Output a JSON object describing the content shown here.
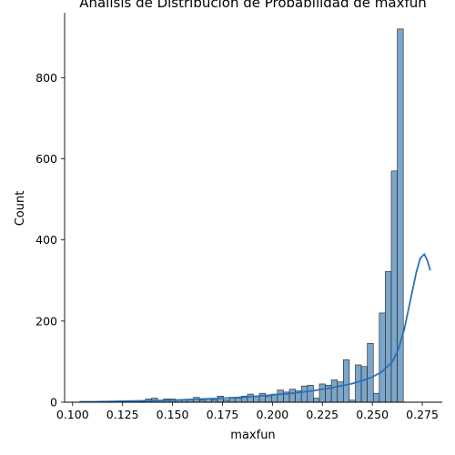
{
  "chart_data": {
    "type": "histogram",
    "title": "Análisis de Distribución de Probabilidad de maxfun",
    "xlabel": "maxfun",
    "ylabel": "Count",
    "xlim": [
      0.096,
      0.285
    ],
    "ylim": [
      0,
      960
    ],
    "x_ticks": [
      0.1,
      0.125,
      0.15,
      0.175,
      0.2,
      0.225,
      0.25,
      0.275
    ],
    "x_tick_labels": [
      "0.100",
      "0.125",
      "0.150",
      "0.175",
      "0.200",
      "0.225",
      "0.250",
      "0.275"
    ],
    "y_ticks": [
      0,
      200,
      400,
      600,
      800
    ],
    "y_tick_labels": [
      "0",
      "200",
      "400",
      "600",
      "800"
    ],
    "grid": false,
    "bar_color": "#7ba5c9",
    "bar_edge_color": "#1f1f1f",
    "kde_color": "#2a72b5",
    "bin_start": 0.1035,
    "bin_width": 0.003,
    "counts": [
      1,
      1,
      1,
      1,
      1,
      1,
      1,
      1,
      1,
      1,
      2,
      8,
      10,
      4,
      8,
      8,
      6,
      5,
      6,
      12,
      5,
      8,
      6,
      15,
      6,
      12,
      10,
      15,
      20,
      15,
      22,
      14,
      20,
      30,
      25,
      32,
      28,
      40,
      42,
      10,
      45,
      42,
      55,
      50,
      105,
      5,
      92,
      88,
      145,
      22,
      220,
      322,
      570,
      920
    ],
    "kde": {
      "x": [
        0.1035,
        0.11,
        0.12,
        0.13,
        0.14,
        0.15,
        0.16,
        0.17,
        0.18,
        0.19,
        0.2,
        0.21,
        0.22,
        0.23,
        0.24,
        0.245,
        0.25,
        0.255,
        0.26,
        0.263,
        0.266,
        0.269,
        0.272,
        0.274,
        0.276,
        0.2775,
        0.279
      ],
      "y": [
        1,
        1,
        2,
        3,
        4,
        5,
        7,
        9,
        11,
        14,
        18,
        22,
        28,
        36,
        46,
        53,
        62,
        76,
        100,
        130,
        180,
        250,
        320,
        355,
        365,
        350,
        325
      ]
    }
  }
}
